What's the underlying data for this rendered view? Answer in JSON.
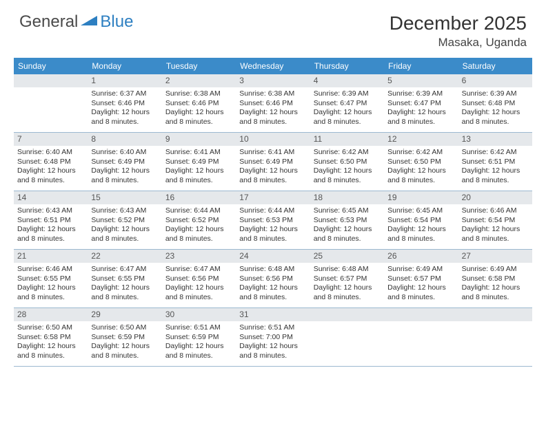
{
  "logo": {
    "general": "General",
    "blue": "Blue"
  },
  "title": "December 2025",
  "location": "Masaka, Uganda",
  "colors": {
    "header_bg": "#3b8bc9",
    "header_fg": "#ffffff",
    "daynum_bg": "#e5e8eb",
    "daynum_fg": "#555555",
    "body_fg": "#333333",
    "week_border": "#9bb8d0",
    "logo_gray": "#4a4a4a",
    "logo_blue": "#2d7fc1"
  },
  "weekdays": [
    "Sunday",
    "Monday",
    "Tuesday",
    "Wednesday",
    "Thursday",
    "Friday",
    "Saturday"
  ],
  "weeks": [
    [
      null,
      {
        "n": "1",
        "sr": "6:37 AM",
        "ss": "6:46 PM",
        "dl": "12 hours and 8 minutes."
      },
      {
        "n": "2",
        "sr": "6:38 AM",
        "ss": "6:46 PM",
        "dl": "12 hours and 8 minutes."
      },
      {
        "n": "3",
        "sr": "6:38 AM",
        "ss": "6:46 PM",
        "dl": "12 hours and 8 minutes."
      },
      {
        "n": "4",
        "sr": "6:39 AM",
        "ss": "6:47 PM",
        "dl": "12 hours and 8 minutes."
      },
      {
        "n": "5",
        "sr": "6:39 AM",
        "ss": "6:47 PM",
        "dl": "12 hours and 8 minutes."
      },
      {
        "n": "6",
        "sr": "6:39 AM",
        "ss": "6:48 PM",
        "dl": "12 hours and 8 minutes."
      }
    ],
    [
      {
        "n": "7",
        "sr": "6:40 AM",
        "ss": "6:48 PM",
        "dl": "12 hours and 8 minutes."
      },
      {
        "n": "8",
        "sr": "6:40 AM",
        "ss": "6:49 PM",
        "dl": "12 hours and 8 minutes."
      },
      {
        "n": "9",
        "sr": "6:41 AM",
        "ss": "6:49 PM",
        "dl": "12 hours and 8 minutes."
      },
      {
        "n": "10",
        "sr": "6:41 AM",
        "ss": "6:49 PM",
        "dl": "12 hours and 8 minutes."
      },
      {
        "n": "11",
        "sr": "6:42 AM",
        "ss": "6:50 PM",
        "dl": "12 hours and 8 minutes."
      },
      {
        "n": "12",
        "sr": "6:42 AM",
        "ss": "6:50 PM",
        "dl": "12 hours and 8 minutes."
      },
      {
        "n": "13",
        "sr": "6:42 AM",
        "ss": "6:51 PM",
        "dl": "12 hours and 8 minutes."
      }
    ],
    [
      {
        "n": "14",
        "sr": "6:43 AM",
        "ss": "6:51 PM",
        "dl": "12 hours and 8 minutes."
      },
      {
        "n": "15",
        "sr": "6:43 AM",
        "ss": "6:52 PM",
        "dl": "12 hours and 8 minutes."
      },
      {
        "n": "16",
        "sr": "6:44 AM",
        "ss": "6:52 PM",
        "dl": "12 hours and 8 minutes."
      },
      {
        "n": "17",
        "sr": "6:44 AM",
        "ss": "6:53 PM",
        "dl": "12 hours and 8 minutes."
      },
      {
        "n": "18",
        "sr": "6:45 AM",
        "ss": "6:53 PM",
        "dl": "12 hours and 8 minutes."
      },
      {
        "n": "19",
        "sr": "6:45 AM",
        "ss": "6:54 PM",
        "dl": "12 hours and 8 minutes."
      },
      {
        "n": "20",
        "sr": "6:46 AM",
        "ss": "6:54 PM",
        "dl": "12 hours and 8 minutes."
      }
    ],
    [
      {
        "n": "21",
        "sr": "6:46 AM",
        "ss": "6:55 PM",
        "dl": "12 hours and 8 minutes."
      },
      {
        "n": "22",
        "sr": "6:47 AM",
        "ss": "6:55 PM",
        "dl": "12 hours and 8 minutes."
      },
      {
        "n": "23",
        "sr": "6:47 AM",
        "ss": "6:56 PM",
        "dl": "12 hours and 8 minutes."
      },
      {
        "n": "24",
        "sr": "6:48 AM",
        "ss": "6:56 PM",
        "dl": "12 hours and 8 minutes."
      },
      {
        "n": "25",
        "sr": "6:48 AM",
        "ss": "6:57 PM",
        "dl": "12 hours and 8 minutes."
      },
      {
        "n": "26",
        "sr": "6:49 AM",
        "ss": "6:57 PM",
        "dl": "12 hours and 8 minutes."
      },
      {
        "n": "27",
        "sr": "6:49 AM",
        "ss": "6:58 PM",
        "dl": "12 hours and 8 minutes."
      }
    ],
    [
      {
        "n": "28",
        "sr": "6:50 AM",
        "ss": "6:58 PM",
        "dl": "12 hours and 8 minutes."
      },
      {
        "n": "29",
        "sr": "6:50 AM",
        "ss": "6:59 PM",
        "dl": "12 hours and 8 minutes."
      },
      {
        "n": "30",
        "sr": "6:51 AM",
        "ss": "6:59 PM",
        "dl": "12 hours and 8 minutes."
      },
      {
        "n": "31",
        "sr": "6:51 AM",
        "ss": "7:00 PM",
        "dl": "12 hours and 8 minutes."
      },
      null,
      null,
      null
    ]
  ],
  "labels": {
    "sunrise": "Sunrise:",
    "sunset": "Sunset:",
    "daylight": "Daylight:"
  }
}
